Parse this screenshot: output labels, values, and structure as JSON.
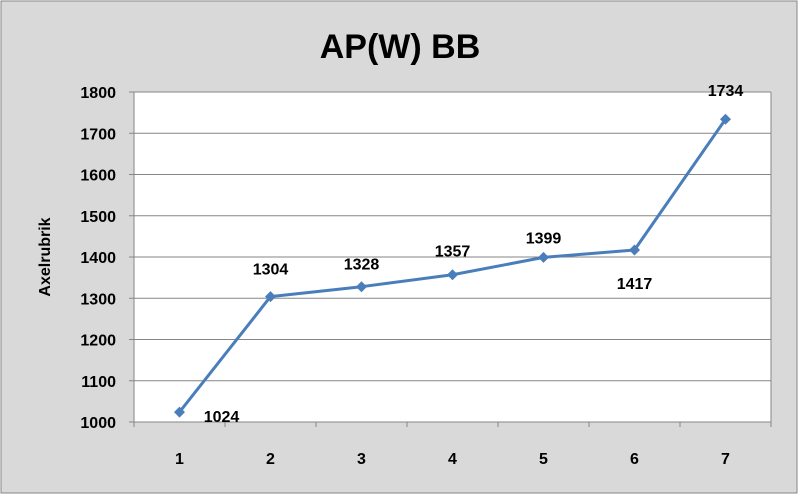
{
  "chart_data": {
    "type": "line",
    "title": "AP(W) BB",
    "xlabel": "",
    "ylabel": "Axelrubrik",
    "categories": [
      "1",
      "2",
      "3",
      "4",
      "5",
      "6",
      "7"
    ],
    "series": [
      {
        "values": [
          1024,
          1304,
          1328,
          1357,
          1399,
          1417,
          1734
        ]
      }
    ],
    "data_labels": [
      "1024",
      "1304",
      "1328",
      "1357",
      "1399",
      "1417",
      "1734"
    ],
    "ylim": [
      1000,
      1800
    ],
    "yticks": [
      1000,
      1100,
      1200,
      1300,
      1400,
      1500,
      1600,
      1700,
      1800
    ],
    "grid": true,
    "legend": "none",
    "colors": {
      "line": "#4A7EBB",
      "outer_background": "#D9D9D9",
      "plot_background": "#FFFFFF",
      "grid": "#868686",
      "text": "#000000"
    }
  }
}
